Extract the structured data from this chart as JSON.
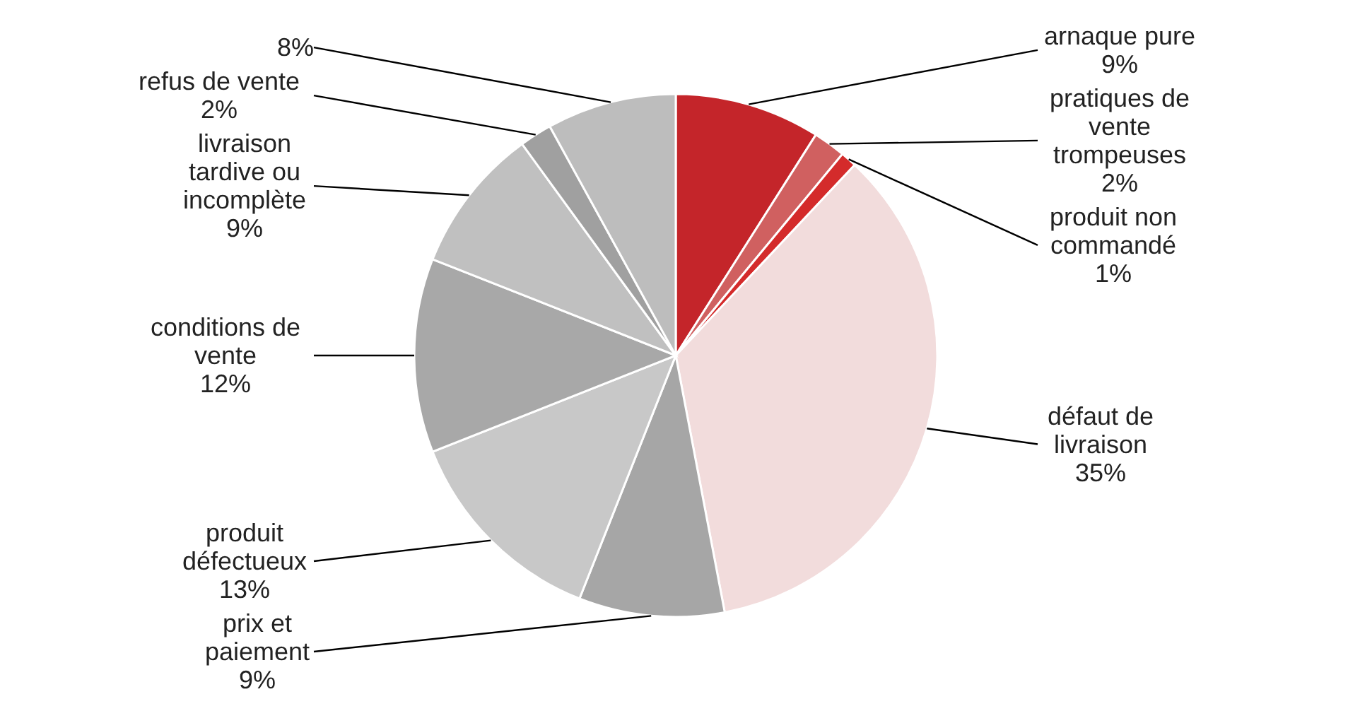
{
  "chart_data": {
    "type": "pie",
    "categories": [
      "arnaque pure",
      "pratiques de vente trompeuses",
      "produit non commandé",
      "défaut de livraison",
      "prix et paiement",
      "produit défectueux",
      "conditions de vente",
      "livraison tardive ou incomplète",
      "refus de vente",
      null
    ],
    "values": [
      9,
      2,
      1,
      35,
      9,
      13,
      12,
      9,
      2,
      8
    ],
    "colors": [
      "#c4252a",
      "#d06060",
      "#d42b2b",
      "#f2dcdc",
      "#a6a6a6",
      "#c8c8c8",
      "#a8a8a8",
      "#c0c0c0",
      "#a0a0a0",
      "#bdbdbd"
    ],
    "value_labels": [
      "9%",
      "2%",
      "1%",
      "35%",
      "9%",
      "13%",
      "12%",
      "9%",
      "2%",
      "8%"
    ]
  }
}
